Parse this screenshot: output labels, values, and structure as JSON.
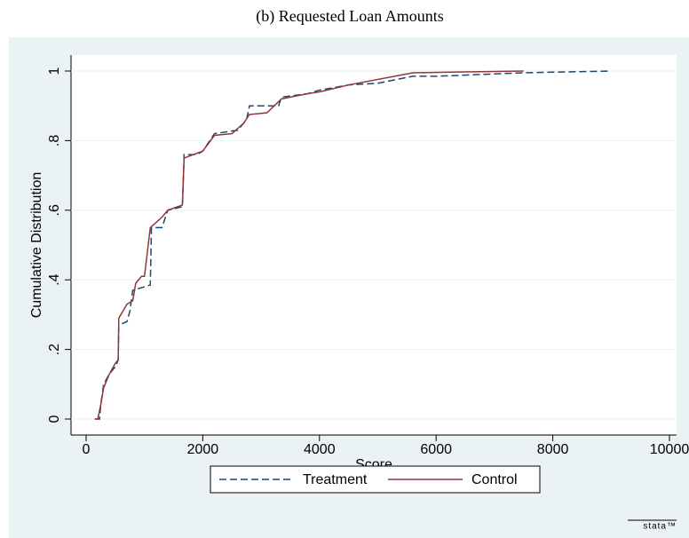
{
  "chart_data": {
    "type": "line",
    "title": "(b) Requested Loan Amounts",
    "x_label": "Score",
    "y_label": "Cumulative Distribution",
    "xlim": [
      0,
      10000
    ],
    "xticks": [
      0,
      2000,
      4000,
      6000,
      8000,
      10000
    ],
    "ylim": [
      0,
      1
    ],
    "yticks": [
      0,
      {
        "value": 0.2,
        "label": ".2"
      },
      {
        "value": 0.4,
        "label": ".4"
      },
      {
        "value": 0.6,
        "label": ".6"
      },
      {
        "value": 0.8,
        "label": ".8"
      },
      1
    ],
    "grid": true,
    "legend": "bottom",
    "watermark": "stata™",
    "series": [
      {
        "name": "Treatment",
        "color": "#1a476f",
        "line_style": "dashed",
        "x": [
          150,
          230,
          250,
          300,
          400,
          500,
          550,
          560,
          700,
          750,
          800,
          1000,
          1100,
          1120,
          1300,
          1400,
          1650,
          1680,
          1900,
          2000,
          2200,
          2600,
          2750,
          2800,
          3300,
          3350,
          3800,
          4000,
          4500,
          5000,
          5600,
          6000,
          7500,
          9000
        ],
        "values": [
          0,
          0,
          0.04,
          0.1,
          0.13,
          0.15,
          0.17,
          0.27,
          0.28,
          0.31,
          0.37,
          0.38,
          0.385,
          0.55,
          0.55,
          0.6,
          0.61,
          0.76,
          0.76,
          0.77,
          0.82,
          0.83,
          0.86,
          0.9,
          0.9,
          0.925,
          0.935,
          0.945,
          0.96,
          0.965,
          0.985,
          0.985,
          0.995,
          1.0
        ]
      },
      {
        "name": "Control",
        "color": "#90353b",
        "line_style": "solid",
        "x": [
          150,
          200,
          250,
          300,
          400,
          500,
          550,
          560,
          700,
          800,
          850,
          950,
          1000,
          1100,
          1300,
          1400,
          1650,
          1680,
          2000,
          2200,
          2500,
          2700,
          2800,
          3100,
          3350,
          3800,
          4000,
          4500,
          5600,
          7500
        ],
        "values": [
          0,
          0,
          0.04,
          0.09,
          0.13,
          0.16,
          0.17,
          0.29,
          0.33,
          0.34,
          0.39,
          0.41,
          0.41,
          0.55,
          0.58,
          0.6,
          0.615,
          0.75,
          0.77,
          0.815,
          0.82,
          0.85,
          0.875,
          0.88,
          0.92,
          0.935,
          0.94,
          0.96,
          0.995,
          1.0
        ]
      }
    ]
  }
}
